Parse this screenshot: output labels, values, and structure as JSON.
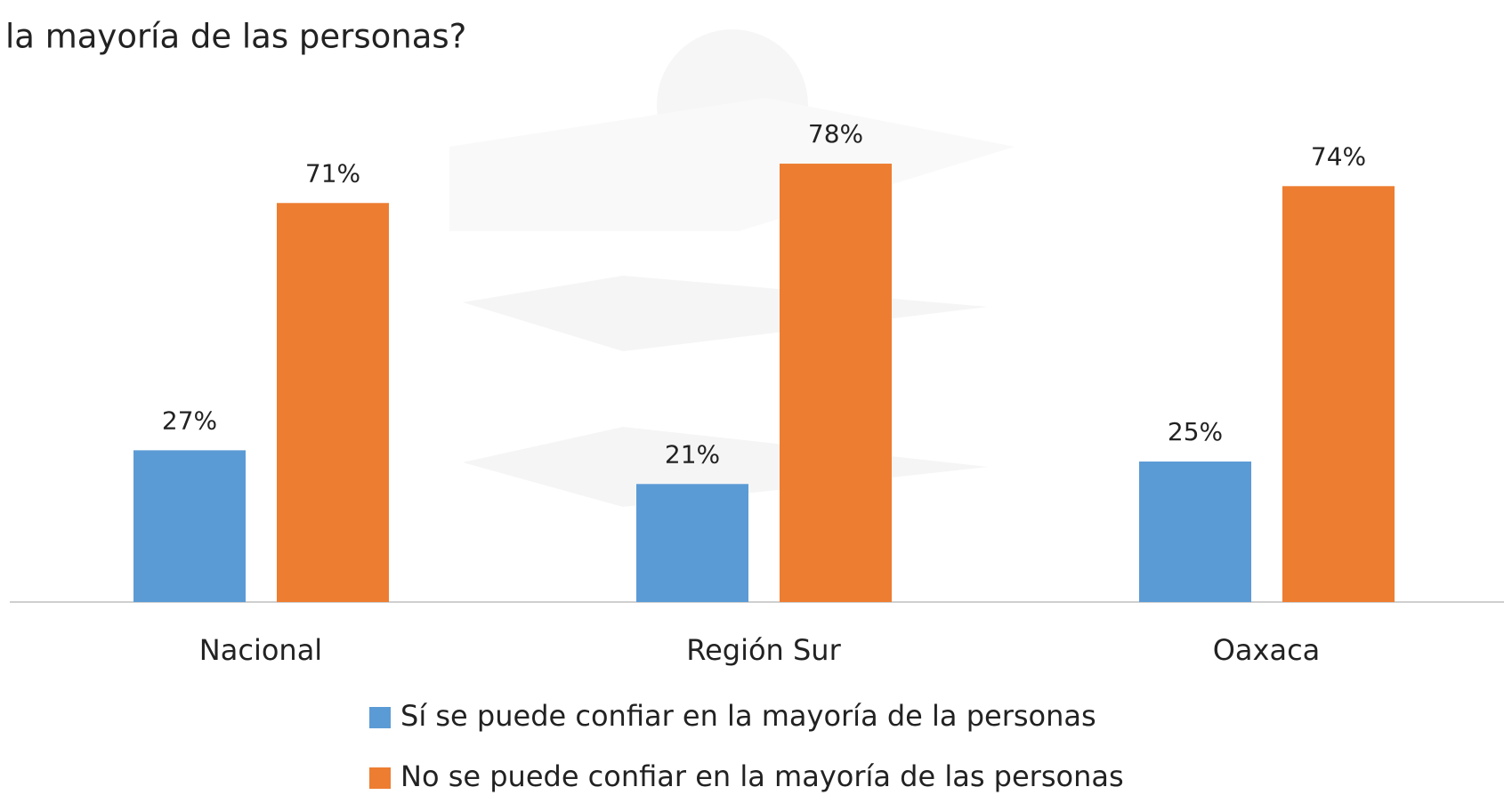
{
  "chart_data": {
    "type": "bar",
    "title": "la mayoría de las personas?",
    "categories": [
      "Nacional",
      "Región Sur",
      "Oaxaca"
    ],
    "series": [
      {
        "name": "Sí se puede confiar en la mayoría de la personas",
        "color": "#5b9bd5",
        "values": [
          27,
          21,
          25
        ],
        "value_labels": [
          "27%",
          "21%",
          "25%"
        ]
      },
      {
        "name": "No se puede confiar en la mayoría de las personas",
        "color": "#ed7d31",
        "values": [
          71,
          78,
          74
        ],
        "value_labels": [
          "71%",
          "78%",
          "74%"
        ]
      }
    ],
    "legend": "bottom"
  }
}
